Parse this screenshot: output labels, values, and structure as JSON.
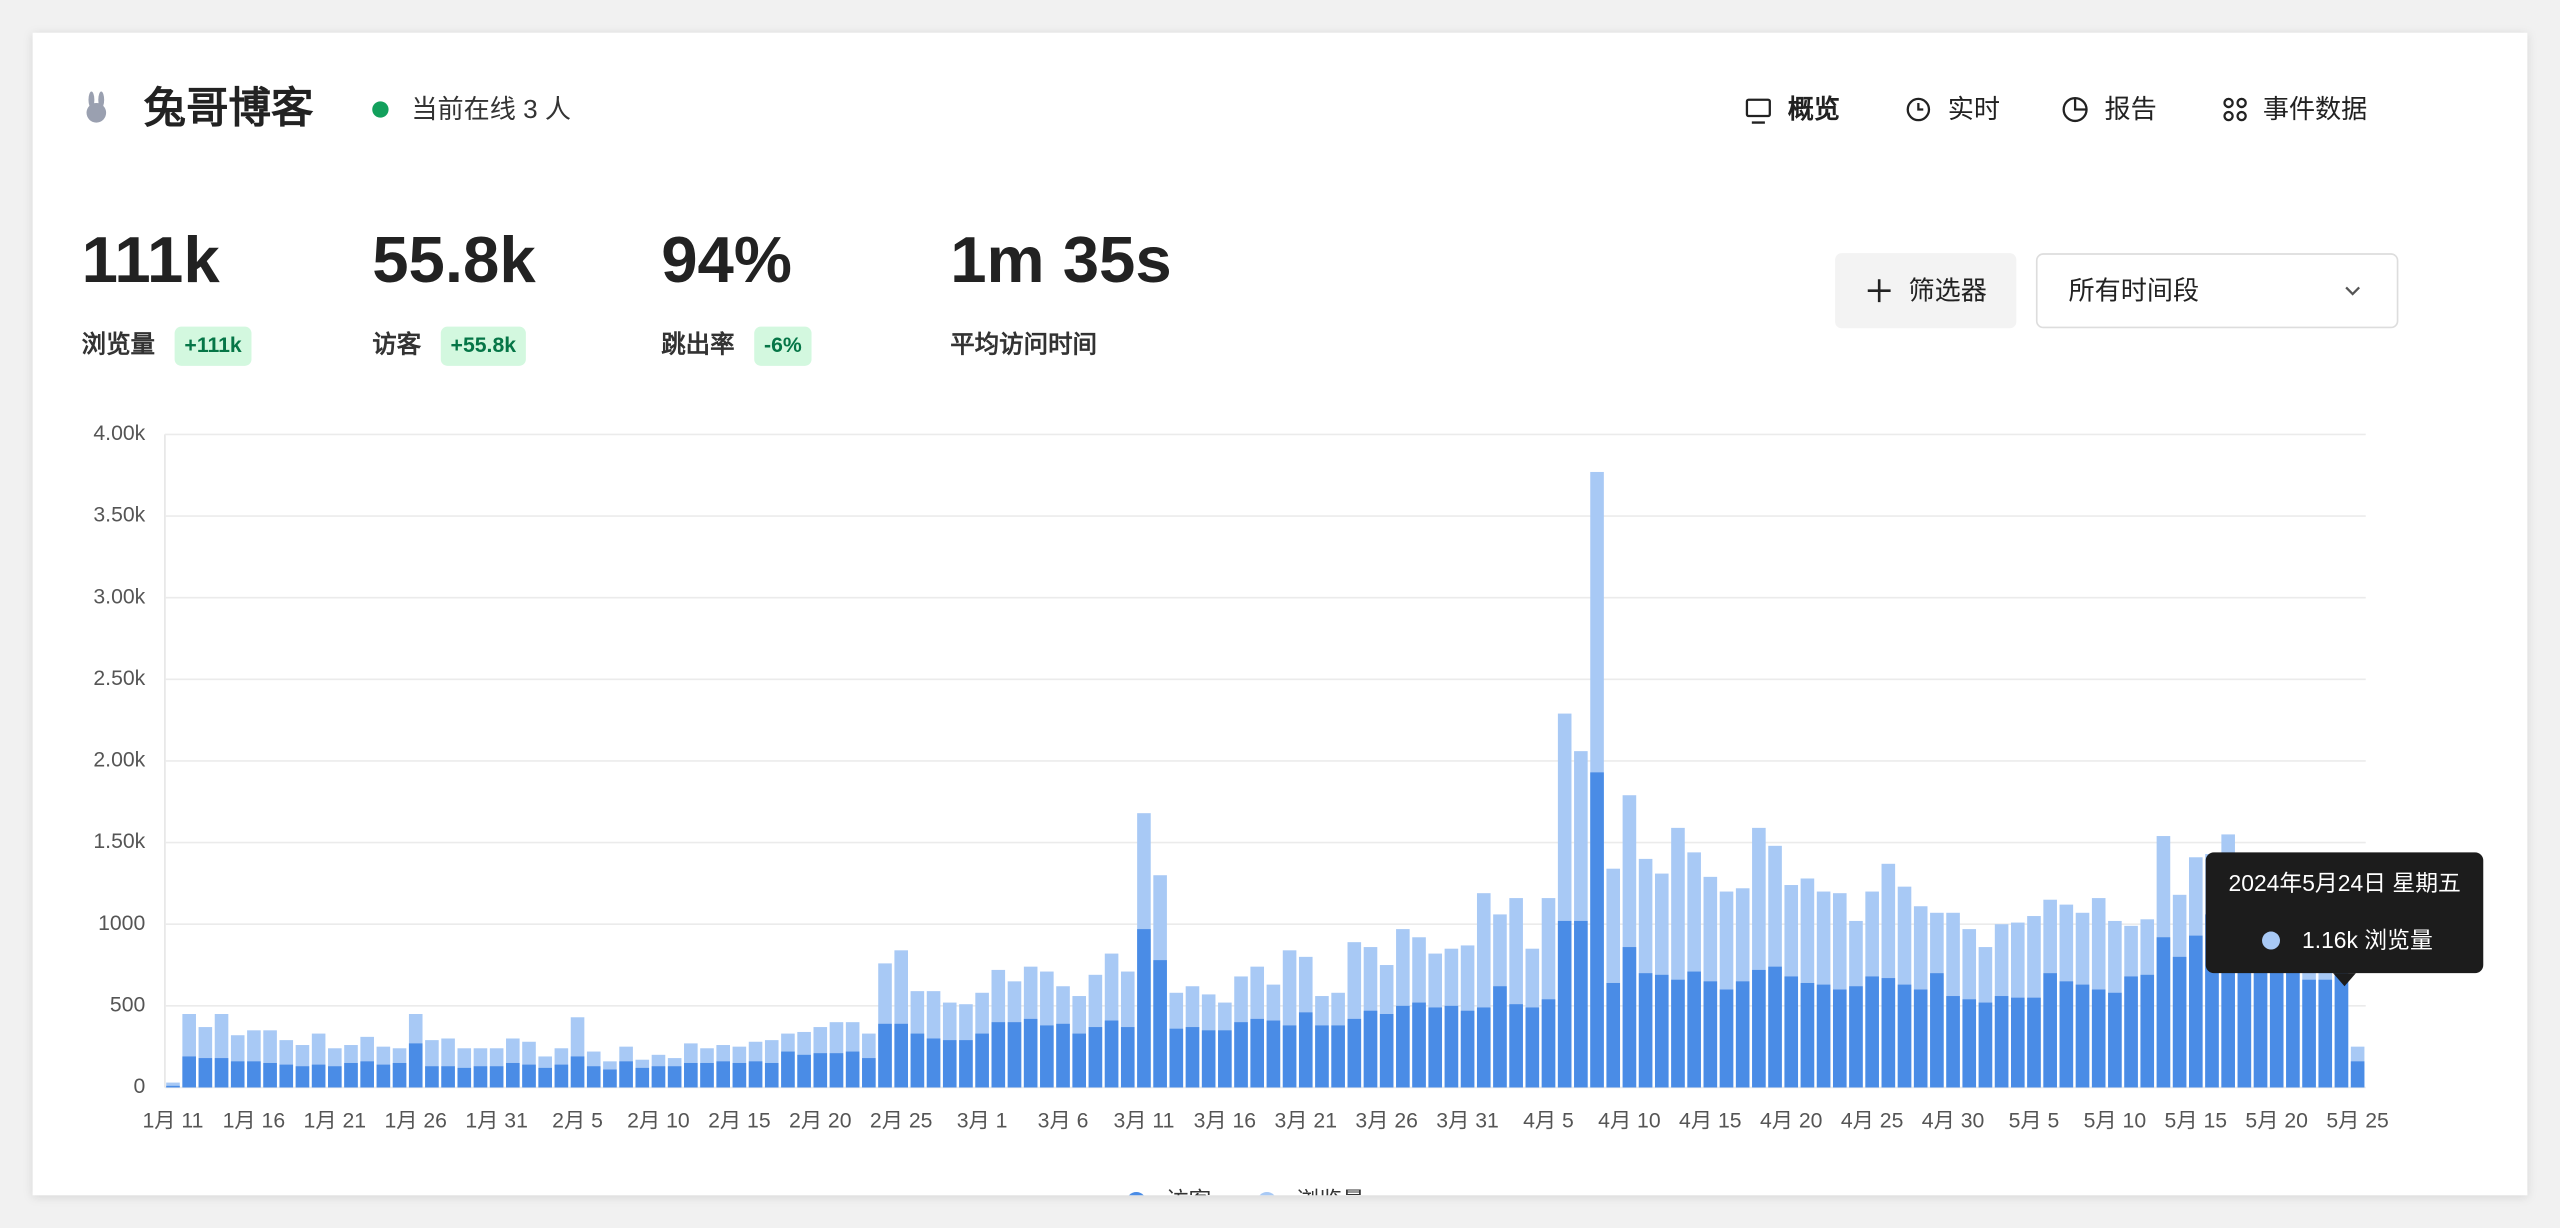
{
  "header": {
    "site_name": "兔哥博客",
    "online": "当前在线 3 人",
    "nav": [
      "概览",
      "实时",
      "报告",
      "事件数据"
    ]
  },
  "stats": [
    {
      "value": "111k",
      "label": "浏览量",
      "change": "+111k"
    },
    {
      "value": "55.8k",
      "label": "访客",
      "change": "+55.8k"
    },
    {
      "value": "94%",
      "label": "跳出率",
      "change": "-6%"
    },
    {
      "value": "1m 35s",
      "label": "平均访问时间"
    }
  ],
  "controls": {
    "filter": "筛选器",
    "date_range": "所有时间段"
  },
  "chart_data": {
    "type": "bar",
    "categories": [
      "1月 11",
      null,
      null,
      null,
      null,
      "1月 16",
      null,
      null,
      null,
      null,
      "1月 21",
      null,
      null,
      null,
      null,
      "1月 26",
      null,
      null,
      null,
      null,
      "1月 31",
      null,
      null,
      null,
      null,
      "2月 5",
      null,
      null,
      null,
      null,
      "2月 10",
      null,
      null,
      null,
      null,
      "2月 15",
      null,
      null,
      null,
      null,
      "2月 20",
      null,
      null,
      null,
      null,
      "2月 25",
      null,
      null,
      null,
      null,
      "3月 1",
      null,
      null,
      null,
      null,
      "3月 6",
      null,
      null,
      null,
      null,
      "3月 11",
      null,
      null,
      null,
      null,
      "3月 16",
      null,
      null,
      null,
      null,
      "3月 21",
      null,
      null,
      null,
      null,
      "3月 26",
      null,
      null,
      null,
      null,
      "3月 31",
      null,
      null,
      null,
      null,
      "4月 5",
      null,
      null,
      null,
      null,
      "4月 10",
      null,
      null,
      null,
      null,
      "4月 15",
      null,
      null,
      null,
      null,
      "4月 20",
      null,
      null,
      null,
      null,
      "4月 25",
      null,
      null,
      null,
      null,
      "4月 30",
      null,
      null,
      null,
      null,
      "5月 5",
      null,
      null,
      null,
      null,
      "5月 10",
      null,
      null,
      null,
      null,
      "5月 15",
      null,
      null,
      null,
      null,
      "5月 20",
      null,
      null,
      null,
      null,
      "5月 25"
    ],
    "series": [
      {
        "name": "访客",
        "color": "#4a8ce6",
        "values": [
          10,
          190,
          180,
          180,
          160,
          160,
          150,
          140,
          130,
          140,
          130,
          150,
          160,
          140,
          150,
          270,
          130,
          130,
          120,
          130,
          130,
          150,
          140,
          120,
          140,
          190,
          130,
          110,
          160,
          120,
          130,
          130,
          150,
          150,
          160,
          150,
          160,
          150,
          220,
          200,
          210,
          210,
          220,
          180,
          390,
          390,
          330,
          300,
          290,
          290,
          330,
          400,
          400,
          420,
          380,
          390,
          330,
          370,
          410,
          370,
          970,
          780,
          360,
          370,
          350,
          350,
          400,
          420,
          410,
          380,
          460,
          380,
          380,
          420,
          470,
          450,
          500,
          520,
          490,
          500,
          470,
          490,
          620,
          510,
          490,
          540,
          1020,
          1020,
          1930,
          640,
          860,
          700,
          690,
          660,
          710,
          650,
          600,
          650,
          720,
          740,
          680,
          640,
          630,
          600,
          620,
          680,
          670,
          630,
          600,
          700,
          560,
          540,
          520,
          560,
          550,
          550,
          700,
          650,
          630,
          600,
          580,
          680,
          690,
          920,
          800,
          930,
          1060,
          900,
          840,
          1070,
          950,
          900,
          660,
          660,
          740,
          160
        ]
      },
      {
        "name": "浏览量",
        "color": "#a8c9f5",
        "values": [
          30,
          450,
          370,
          450,
          320,
          350,
          350,
          290,
          260,
          330,
          240,
          260,
          310,
          250,
          240,
          450,
          290,
          300,
          240,
          240,
          240,
          300,
          280,
          190,
          240,
          430,
          220,
          160,
          250,
          170,
          200,
          180,
          270,
          240,
          260,
          250,
          280,
          290,
          330,
          340,
          370,
          400,
          400,
          330,
          760,
          840,
          590,
          590,
          520,
          510,
          580,
          720,
          650,
          740,
          710,
          620,
          560,
          690,
          820,
          710,
          1680,
          1300,
          580,
          620,
          570,
          520,
          680,
          740,
          630,
          840,
          800,
          560,
          580,
          890,
          860,
          750,
          970,
          920,
          820,
          850,
          870,
          1190,
          1060,
          1160,
          850,
          1160,
          2290,
          2060,
          3770,
          1340,
          1790,
          1400,
          1310,
          1590,
          1440,
          1290,
          1200,
          1220,
          1590,
          1480,
          1240,
          1280,
          1200,
          1190,
          1020,
          1200,
          1370,
          1230,
          1110,
          1070,
          1070,
          970,
          860,
          1000,
          1010,
          1050,
          1150,
          1120,
          1070,
          1160,
          1020,
          990,
          1030,
          1540,
          1180,
          1410,
          1430,
          1550,
          1300,
          1380,
          1230,
          1200,
          1250,
          1080,
          1160,
          250
        ]
      }
    ],
    "ylim": [
      0,
      4000
    ],
    "yticks": [
      0,
      500,
      1000,
      {
        "value": 1500,
        "label": "1.50k"
      },
      {
        "value": 2000,
        "label": "2.00k"
      },
      {
        "value": 2500,
        "label": "2.50k"
      },
      {
        "value": 3000,
        "label": "3.00k"
      },
      {
        "value": 3500,
        "label": "3.50k"
      },
      {
        "value": 4000,
        "label": "4.00k"
      }
    ],
    "grid": true,
    "legend": "bottom",
    "tooltip": {
      "title": "2024年5月24日 星期五",
      "text": "1.16k 浏览量"
    }
  }
}
